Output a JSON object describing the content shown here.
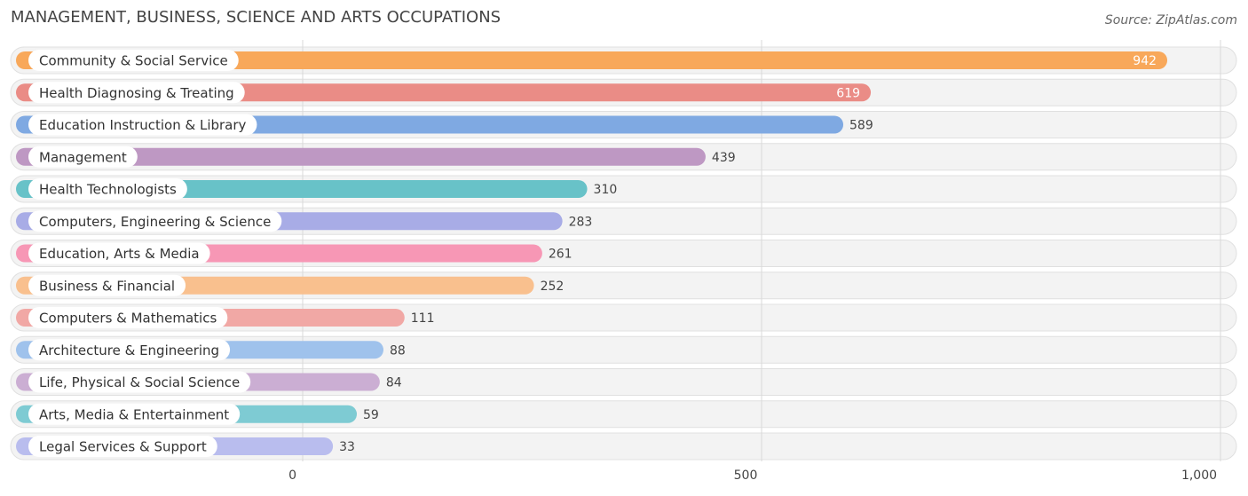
{
  "title": "MANAGEMENT, BUSINESS, SCIENCE AND ARTS OCCUPATIONS",
  "source": "Source: ZipAtlas.com",
  "chart_data": {
    "type": "bar",
    "orientation": "horizontal",
    "categories": [
      "Community & Social Service",
      "Health Diagnosing & Treating",
      "Education Instruction & Library",
      "Management",
      "Health Technologists",
      "Computers, Engineering & Science",
      "Education, Arts & Media",
      "Business & Financial",
      "Computers & Mathematics",
      "Architecture & Engineering",
      "Life, Physical & Social Science",
      "Arts, Media & Entertainment",
      "Legal Services & Support"
    ],
    "values": [
      942,
      619,
      589,
      439,
      310,
      283,
      261,
      252,
      111,
      88,
      84,
      59,
      33
    ],
    "value_labels": [
      "942",
      "619",
      "589",
      "439",
      "310",
      "283",
      "261",
      "252",
      "111",
      "88",
      "84",
      "59",
      "33"
    ],
    "colors": [
      "#f8a85a",
      "#ea8c86",
      "#7fa9e2",
      "#be98c3",
      "#68c2c8",
      "#a8ace6",
      "#f797b5",
      "#f9c08e",
      "#f1a8a5",
      "#9fc2ec",
      "#cbaed3",
      "#7ecbd3",
      "#b9bdee"
    ],
    "x_ticks": [
      0,
      500,
      1000
    ],
    "x_tick_labels": [
      "0",
      "500",
      "1,000"
    ],
    "xlim": [
      0,
      1000
    ],
    "grid": true,
    "xlabel": "",
    "ylabel": ""
  }
}
